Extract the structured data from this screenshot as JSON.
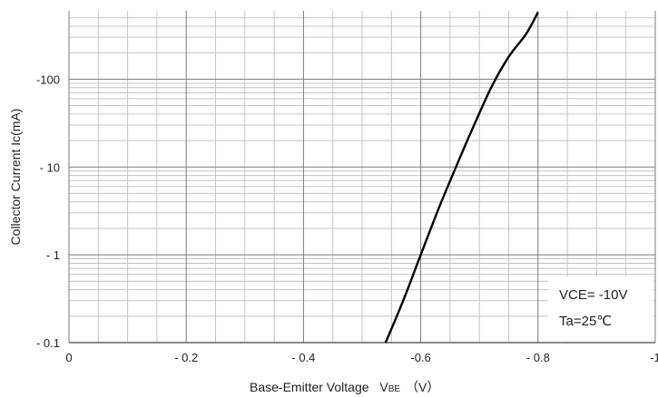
{
  "chart_data": {
    "type": "line",
    "title": "",
    "xlabel": "Base-Emitter Voltage",
    "xlabel_symbol_main": "V",
    "xlabel_symbol_sub": "BE",
    "xlabel_unit": "（V）",
    "ylabel": "Collector Current  Ic(mA)",
    "x_scale": "linear",
    "y_scale": "log",
    "xlim": [
      0,
      -1
    ],
    "ylim": [
      -0.1,
      -600
    ],
    "x_ticks": [
      0,
      -0.2,
      -0.4,
      -0.6,
      -0.8,
      -1
    ],
    "x_tick_labels": [
      "0",
      "- 0.2",
      "- 0.4",
      "-0.6",
      "- 0.8",
      "-1"
    ],
    "y_ticks": [
      -0.1,
      -1,
      -10,
      -100
    ],
    "y_tick_labels": [
      "- 0.1",
      "- 1",
      "- 10",
      "-100"
    ],
    "grid": true,
    "series": [
      {
        "x": [
          -0.54,
          -0.57,
          -0.6,
          -0.63,
          -0.66,
          -0.69,
          -0.72,
          -0.75,
          -0.78,
          -0.8
        ],
        "y": [
          -0.1,
          -0.3,
          -1.0,
          -3.3,
          -10,
          -29,
          -80,
          -180,
          -330,
          -580
        ]
      }
    ],
    "annotations": [
      "VCE= -10V",
      "Ta=25℃"
    ]
  }
}
